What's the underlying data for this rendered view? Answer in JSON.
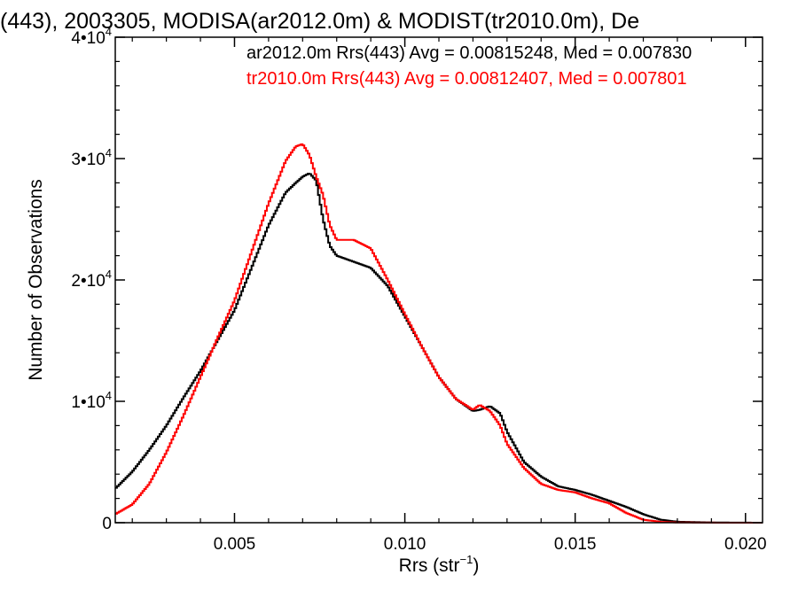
{
  "chart_data": {
    "type": "line",
    "title": "(443), 2003305, MODISA(ar2012.0m) & MODIST(tr2010.0m), De",
    "xlabel": "Rrs (str",
    "xlabel_sup": "−1",
    "xlabel_end": ")",
    "ylabel": "Number of Observations",
    "xlim": [
      0.0015,
      0.0205
    ],
    "ylim": [
      0,
      40000
    ],
    "x_ticks": [
      {
        "value": 0.005,
        "label": "0.005"
      },
      {
        "value": 0.01,
        "label": "0.010"
      },
      {
        "value": 0.015,
        "label": "0.015"
      },
      {
        "value": 0.02,
        "label": "0.020"
      }
    ],
    "y_ticks": [
      {
        "value": 0,
        "label": "0",
        "sup": ""
      },
      {
        "value": 10000,
        "label": "1•10",
        "sup": "4"
      },
      {
        "value": 20000,
        "label": "2•10",
        "sup": "4"
      },
      {
        "value": 30000,
        "label": "3•10",
        "sup": "4"
      },
      {
        "value": 40000,
        "label": "4•10",
        "sup": "4"
      }
    ],
    "legend_placement": "top-right",
    "series": [
      {
        "name": "ar2012.0m Rrs(443) Avg = 0.00815248, Med = 0.007830",
        "color": "#000000",
        "x": [
          0.0015,
          0.002,
          0.0025,
          0.003,
          0.0035,
          0.004,
          0.0045,
          0.005,
          0.0055,
          0.006,
          0.0065,
          0.0068,
          0.007,
          0.0072,
          0.0074,
          0.0076,
          0.0078,
          0.008,
          0.0085,
          0.009,
          0.0095,
          0.01,
          0.0105,
          0.011,
          0.0115,
          0.012,
          0.0122,
          0.0125,
          0.0128,
          0.013,
          0.0135,
          0.014,
          0.0145,
          0.015,
          0.0155,
          0.016,
          0.0165,
          0.017,
          0.0175,
          0.018,
          0.019,
          0.0205
        ],
        "values": [
          2800,
          4200,
          6000,
          8000,
          10300,
          12500,
          15000,
          17500,
          21000,
          24500,
          27200,
          28000,
          28500,
          28800,
          28200,
          25000,
          22800,
          22000,
          21500,
          21000,
          19500,
          17000,
          14500,
          12000,
          10200,
          9200,
          9300,
          9600,
          9000,
          7500,
          5000,
          3800,
          3000,
          2700,
          2300,
          1800,
          1300,
          700,
          250,
          80,
          20,
          0
        ]
      },
      {
        "name": "tr2010.0m Rrs(443) Avg = 0.00812407, Med = 0.007801",
        "color": "#ff0000",
        "x": [
          0.0015,
          0.002,
          0.0025,
          0.003,
          0.0035,
          0.004,
          0.0045,
          0.005,
          0.0055,
          0.006,
          0.0065,
          0.0068,
          0.007,
          0.0072,
          0.0074,
          0.0076,
          0.0078,
          0.008,
          0.0085,
          0.009,
          0.0095,
          0.01,
          0.0105,
          0.011,
          0.0115,
          0.012,
          0.0122,
          0.0125,
          0.0128,
          0.013,
          0.0135,
          0.014,
          0.0145,
          0.015,
          0.0155,
          0.016,
          0.0165,
          0.017,
          0.0175,
          0.018,
          0.019,
          0.0205
        ],
        "values": [
          700,
          1500,
          3200,
          5800,
          8800,
          12000,
          15200,
          18300,
          22300,
          26300,
          29800,
          31000,
          31200,
          30300,
          28500,
          27000,
          24500,
          23300,
          23300,
          22600,
          20000,
          17200,
          14500,
          12000,
          10200,
          9300,
          9700,
          9200,
          8000,
          6500,
          4500,
          3200,
          2700,
          2500,
          2000,
          1600,
          800,
          250,
          70,
          20,
          5,
          0
        ]
      }
    ]
  }
}
